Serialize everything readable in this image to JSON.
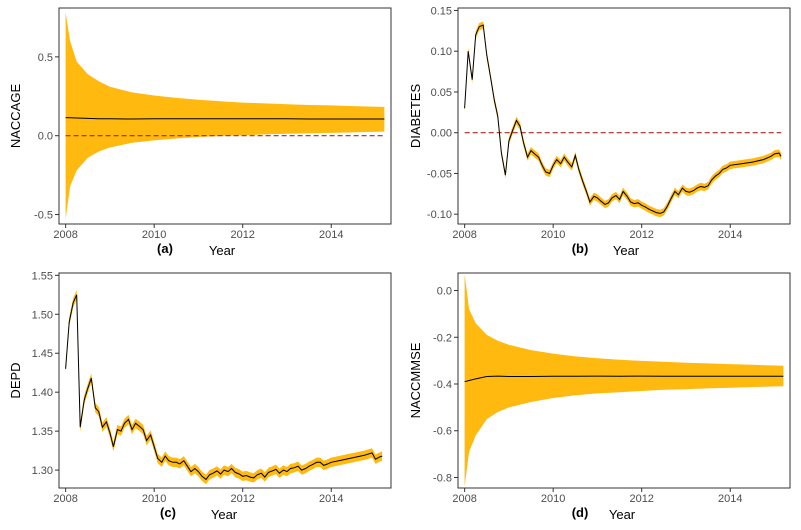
{
  "colors": {
    "band": "#FFB90F",
    "mean_line": "#000000",
    "zero_line": "#B22222",
    "frame": "#333333",
    "tick_text": "#4d4d4d"
  },
  "chart_data": [
    {
      "type": "line",
      "panel_label": "(a)",
      "ylabel": "NACCAGE",
      "xlabel": "Year",
      "xlim": [
        2007.85,
        2015.35
      ],
      "ylim": [
        -0.56,
        0.81
      ],
      "x_ticks": [
        2008,
        2010,
        2012,
        2014
      ],
      "x_tick_labels": [
        "2008",
        "2010",
        "2012",
        "2014"
      ],
      "y_ticks": [
        -0.5,
        0.0,
        0.5
      ],
      "y_tick_labels": [
        "-0.5",
        "0.0",
        "0.5"
      ],
      "zero_line": true,
      "band_style": "funnel",
      "series": {
        "x": [
          2008.0,
          2008.1,
          2008.25,
          2008.5,
          2008.75,
          2009.0,
          2009.5,
          2010.0,
          2010.5,
          2011.0,
          2011.5,
          2012.0,
          2012.5,
          2013.0,
          2013.5,
          2014.0,
          2014.5,
          2015.2
        ],
        "mean": [
          0.115,
          0.114,
          0.112,
          0.11,
          0.108,
          0.107,
          0.106,
          0.107,
          0.108,
          0.108,
          0.107,
          0.107,
          0.107,
          0.107,
          0.106,
          0.106,
          0.106,
          0.106
        ],
        "upper": [
          0.78,
          0.6,
          0.47,
          0.39,
          0.345,
          0.31,
          0.275,
          0.255,
          0.24,
          0.228,
          0.218,
          0.21,
          0.205,
          0.2,
          0.195,
          0.192,
          0.188,
          0.183
        ],
        "lower": [
          -0.53,
          -0.32,
          -0.22,
          -0.14,
          -0.1,
          -0.075,
          -0.045,
          -0.03,
          -0.018,
          -0.008,
          -0.002,
          0.002,
          0.008,
          0.012,
          0.016,
          0.018,
          0.021,
          0.026
        ]
      }
    },
    {
      "type": "line",
      "panel_label": "(b)",
      "ylabel": "DIABETES",
      "xlabel": "Year",
      "xlim": [
        2007.85,
        2015.35
      ],
      "ylim": [
        -0.112,
        0.153
      ],
      "x_ticks": [
        2008,
        2010,
        2012,
        2014
      ],
      "x_tick_labels": [
        "2008",
        "2010",
        "2012",
        "2014"
      ],
      "y_ticks": [
        -0.1,
        -0.05,
        0.0,
        0.05,
        0.1,
        0.15
      ],
      "y_tick_labels": [
        "-0.10",
        "-0.05",
        "0.00",
        "0.05",
        "0.10",
        "0.15"
      ],
      "zero_line": true,
      "band_half_width": 0.0045,
      "series": {
        "x": [
          2008.0,
          2008.08,
          2008.17,
          2008.25,
          2008.33,
          2008.42,
          2008.5,
          2008.58,
          2008.67,
          2008.75,
          2008.83,
          2008.92,
          2009.0,
          2009.08,
          2009.17,
          2009.25,
          2009.33,
          2009.42,
          2009.5,
          2009.58,
          2009.67,
          2009.75,
          2009.83,
          2009.92,
          2010.0,
          2010.08,
          2010.17,
          2010.25,
          2010.33,
          2010.42,
          2010.5,
          2010.58,
          2010.67,
          2010.75,
          2010.83,
          2010.92,
          2011.0,
          2011.08,
          2011.17,
          2011.25,
          2011.33,
          2011.42,
          2011.5,
          2011.58,
          2011.67,
          2011.75,
          2011.83,
          2011.92,
          2012.0,
          2012.08,
          2012.17,
          2012.25,
          2012.33,
          2012.42,
          2012.5,
          2012.58,
          2012.67,
          2012.75,
          2012.83,
          2012.92,
          2013.0,
          2013.08,
          2013.17,
          2013.25,
          2013.33,
          2013.42,
          2013.5,
          2013.58,
          2013.67,
          2013.75,
          2013.83,
          2013.92,
          2014.0,
          2014.25,
          2014.5,
          2014.75,
          2014.92,
          2015.0,
          2015.1,
          2015.15
        ],
        "mean": [
          0.03,
          0.1,
          0.065,
          0.12,
          0.13,
          0.132,
          0.095,
          0.07,
          0.04,
          0.02,
          -0.025,
          -0.052,
          -0.01,
          0.002,
          0.015,
          0.008,
          -0.012,
          -0.03,
          -0.022,
          -0.026,
          -0.03,
          -0.04,
          -0.048,
          -0.05,
          -0.04,
          -0.033,
          -0.038,
          -0.03,
          -0.036,
          -0.042,
          -0.028,
          -0.045,
          -0.06,
          -0.072,
          -0.085,
          -0.078,
          -0.08,
          -0.084,
          -0.088,
          -0.086,
          -0.08,
          -0.077,
          -0.082,
          -0.072,
          -0.078,
          -0.085,
          -0.087,
          -0.086,
          -0.089,
          -0.091,
          -0.094,
          -0.096,
          -0.098,
          -0.099,
          -0.097,
          -0.09,
          -0.08,
          -0.072,
          -0.076,
          -0.068,
          -0.072,
          -0.073,
          -0.071,
          -0.068,
          -0.066,
          -0.067,
          -0.065,
          -0.058,
          -0.053,
          -0.05,
          -0.045,
          -0.043,
          -0.04,
          -0.038,
          -0.036,
          -0.033,
          -0.029,
          -0.026,
          -0.025,
          -0.029
        ]
      }
    },
    {
      "type": "line",
      "panel_label": "(c)",
      "ylabel": "DEPD",
      "xlabel": "Year",
      "xlim": [
        2007.85,
        2015.35
      ],
      "ylim": [
        1.277,
        1.553
      ],
      "x_ticks": [
        2008,
        2010,
        2012,
        2014
      ],
      "x_tick_labels": [
        "2008",
        "2010",
        "2012",
        "2014"
      ],
      "y_ticks": [
        1.3,
        1.35,
        1.4,
        1.45,
        1.5,
        1.55
      ],
      "y_tick_labels": [
        "1.30",
        "1.35",
        "1.40",
        "1.45",
        "1.50",
        "1.55"
      ],
      "zero_line": false,
      "band_half_width": 0.006,
      "series": {
        "x": [
          2008.0,
          2008.08,
          2008.17,
          2008.25,
          2008.33,
          2008.42,
          2008.5,
          2008.58,
          2008.67,
          2008.75,
          2008.83,
          2008.92,
          2009.0,
          2009.08,
          2009.17,
          2009.25,
          2009.33,
          2009.42,
          2009.5,
          2009.58,
          2009.67,
          2009.75,
          2009.83,
          2009.92,
          2010.0,
          2010.08,
          2010.17,
          2010.25,
          2010.33,
          2010.42,
          2010.5,
          2010.58,
          2010.67,
          2010.75,
          2010.83,
          2010.92,
          2011.0,
          2011.08,
          2011.17,
          2011.25,
          2011.33,
          2011.42,
          2011.5,
          2011.58,
          2011.67,
          2011.75,
          2011.83,
          2011.92,
          2012.0,
          2012.08,
          2012.17,
          2012.25,
          2012.33,
          2012.42,
          2012.5,
          2012.58,
          2012.67,
          2012.75,
          2012.83,
          2012.92,
          2013.0,
          2013.08,
          2013.17,
          2013.25,
          2013.33,
          2013.42,
          2013.5,
          2013.58,
          2013.67,
          2013.75,
          2013.83,
          2013.92,
          2014.0,
          2014.25,
          2014.5,
          2014.75,
          2014.92,
          2015.0,
          2015.1,
          2015.15
        ],
        "mean": [
          1.43,
          1.49,
          1.515,
          1.525,
          1.355,
          1.39,
          1.405,
          1.418,
          1.38,
          1.375,
          1.355,
          1.362,
          1.348,
          1.33,
          1.352,
          1.35,
          1.36,
          1.365,
          1.352,
          1.36,
          1.356,
          1.352,
          1.338,
          1.345,
          1.33,
          1.315,
          1.31,
          1.318,
          1.312,
          1.31,
          1.31,
          1.308,
          1.312,
          1.305,
          1.298,
          1.302,
          1.298,
          1.292,
          1.288,
          1.294,
          1.296,
          1.299,
          1.295,
          1.3,
          1.298,
          1.302,
          1.297,
          1.295,
          1.292,
          1.293,
          1.291,
          1.29,
          1.294,
          1.296,
          1.291,
          1.297,
          1.299,
          1.301,
          1.296,
          1.3,
          1.298,
          1.302,
          1.303,
          1.305,
          1.3,
          1.302,
          1.305,
          1.307,
          1.31,
          1.31,
          1.306,
          1.308,
          1.31,
          1.313,
          1.316,
          1.319,
          1.322,
          1.314,
          1.317,
          1.318
        ]
      }
    },
    {
      "type": "line",
      "panel_label": "(d)",
      "ylabel": "NACCMMSE",
      "xlabel": "Year",
      "xlim": [
        2007.85,
        2015.35
      ],
      "ylim": [
        -0.845,
        0.075
      ],
      "x_ticks": [
        2008,
        2010,
        2012,
        2014
      ],
      "x_tick_labels": [
        "2008",
        "2010",
        "2012",
        "2014"
      ],
      "y_ticks": [
        -0.8,
        -0.6,
        -0.4,
        -0.2,
        0.0
      ],
      "y_tick_labels": [
        "-0.8",
        "-0.6",
        "-0.4",
        "-0.2",
        "0.0"
      ],
      "zero_line": false,
      "band_style": "funnel",
      "series": {
        "x": [
          2008.0,
          2008.1,
          2008.25,
          2008.5,
          2008.75,
          2009.0,
          2009.5,
          2010.0,
          2010.5,
          2011.0,
          2011.5,
          2012.0,
          2012.5,
          2013.0,
          2013.5,
          2014.0,
          2014.5,
          2015.2
        ],
        "mean": [
          -0.39,
          -0.385,
          -0.378,
          -0.368,
          -0.366,
          -0.368,
          -0.368,
          -0.367,
          -0.367,
          -0.366,
          -0.367,
          -0.366,
          -0.367,
          -0.367,
          -0.367,
          -0.367,
          -0.367,
          -0.367
        ],
        "upper": [
          0.07,
          -0.08,
          -0.14,
          -0.19,
          -0.215,
          -0.232,
          -0.255,
          -0.27,
          -0.282,
          -0.29,
          -0.296,
          -0.301,
          -0.305,
          -0.309,
          -0.312,
          -0.315,
          -0.318,
          -0.322
        ],
        "lower": [
          -0.84,
          -0.69,
          -0.62,
          -0.55,
          -0.52,
          -0.5,
          -0.477,
          -0.46,
          -0.448,
          -0.44,
          -0.435,
          -0.43,
          -0.425,
          -0.422,
          -0.419,
          -0.416,
          -0.413,
          -0.41
        ]
      }
    }
  ]
}
